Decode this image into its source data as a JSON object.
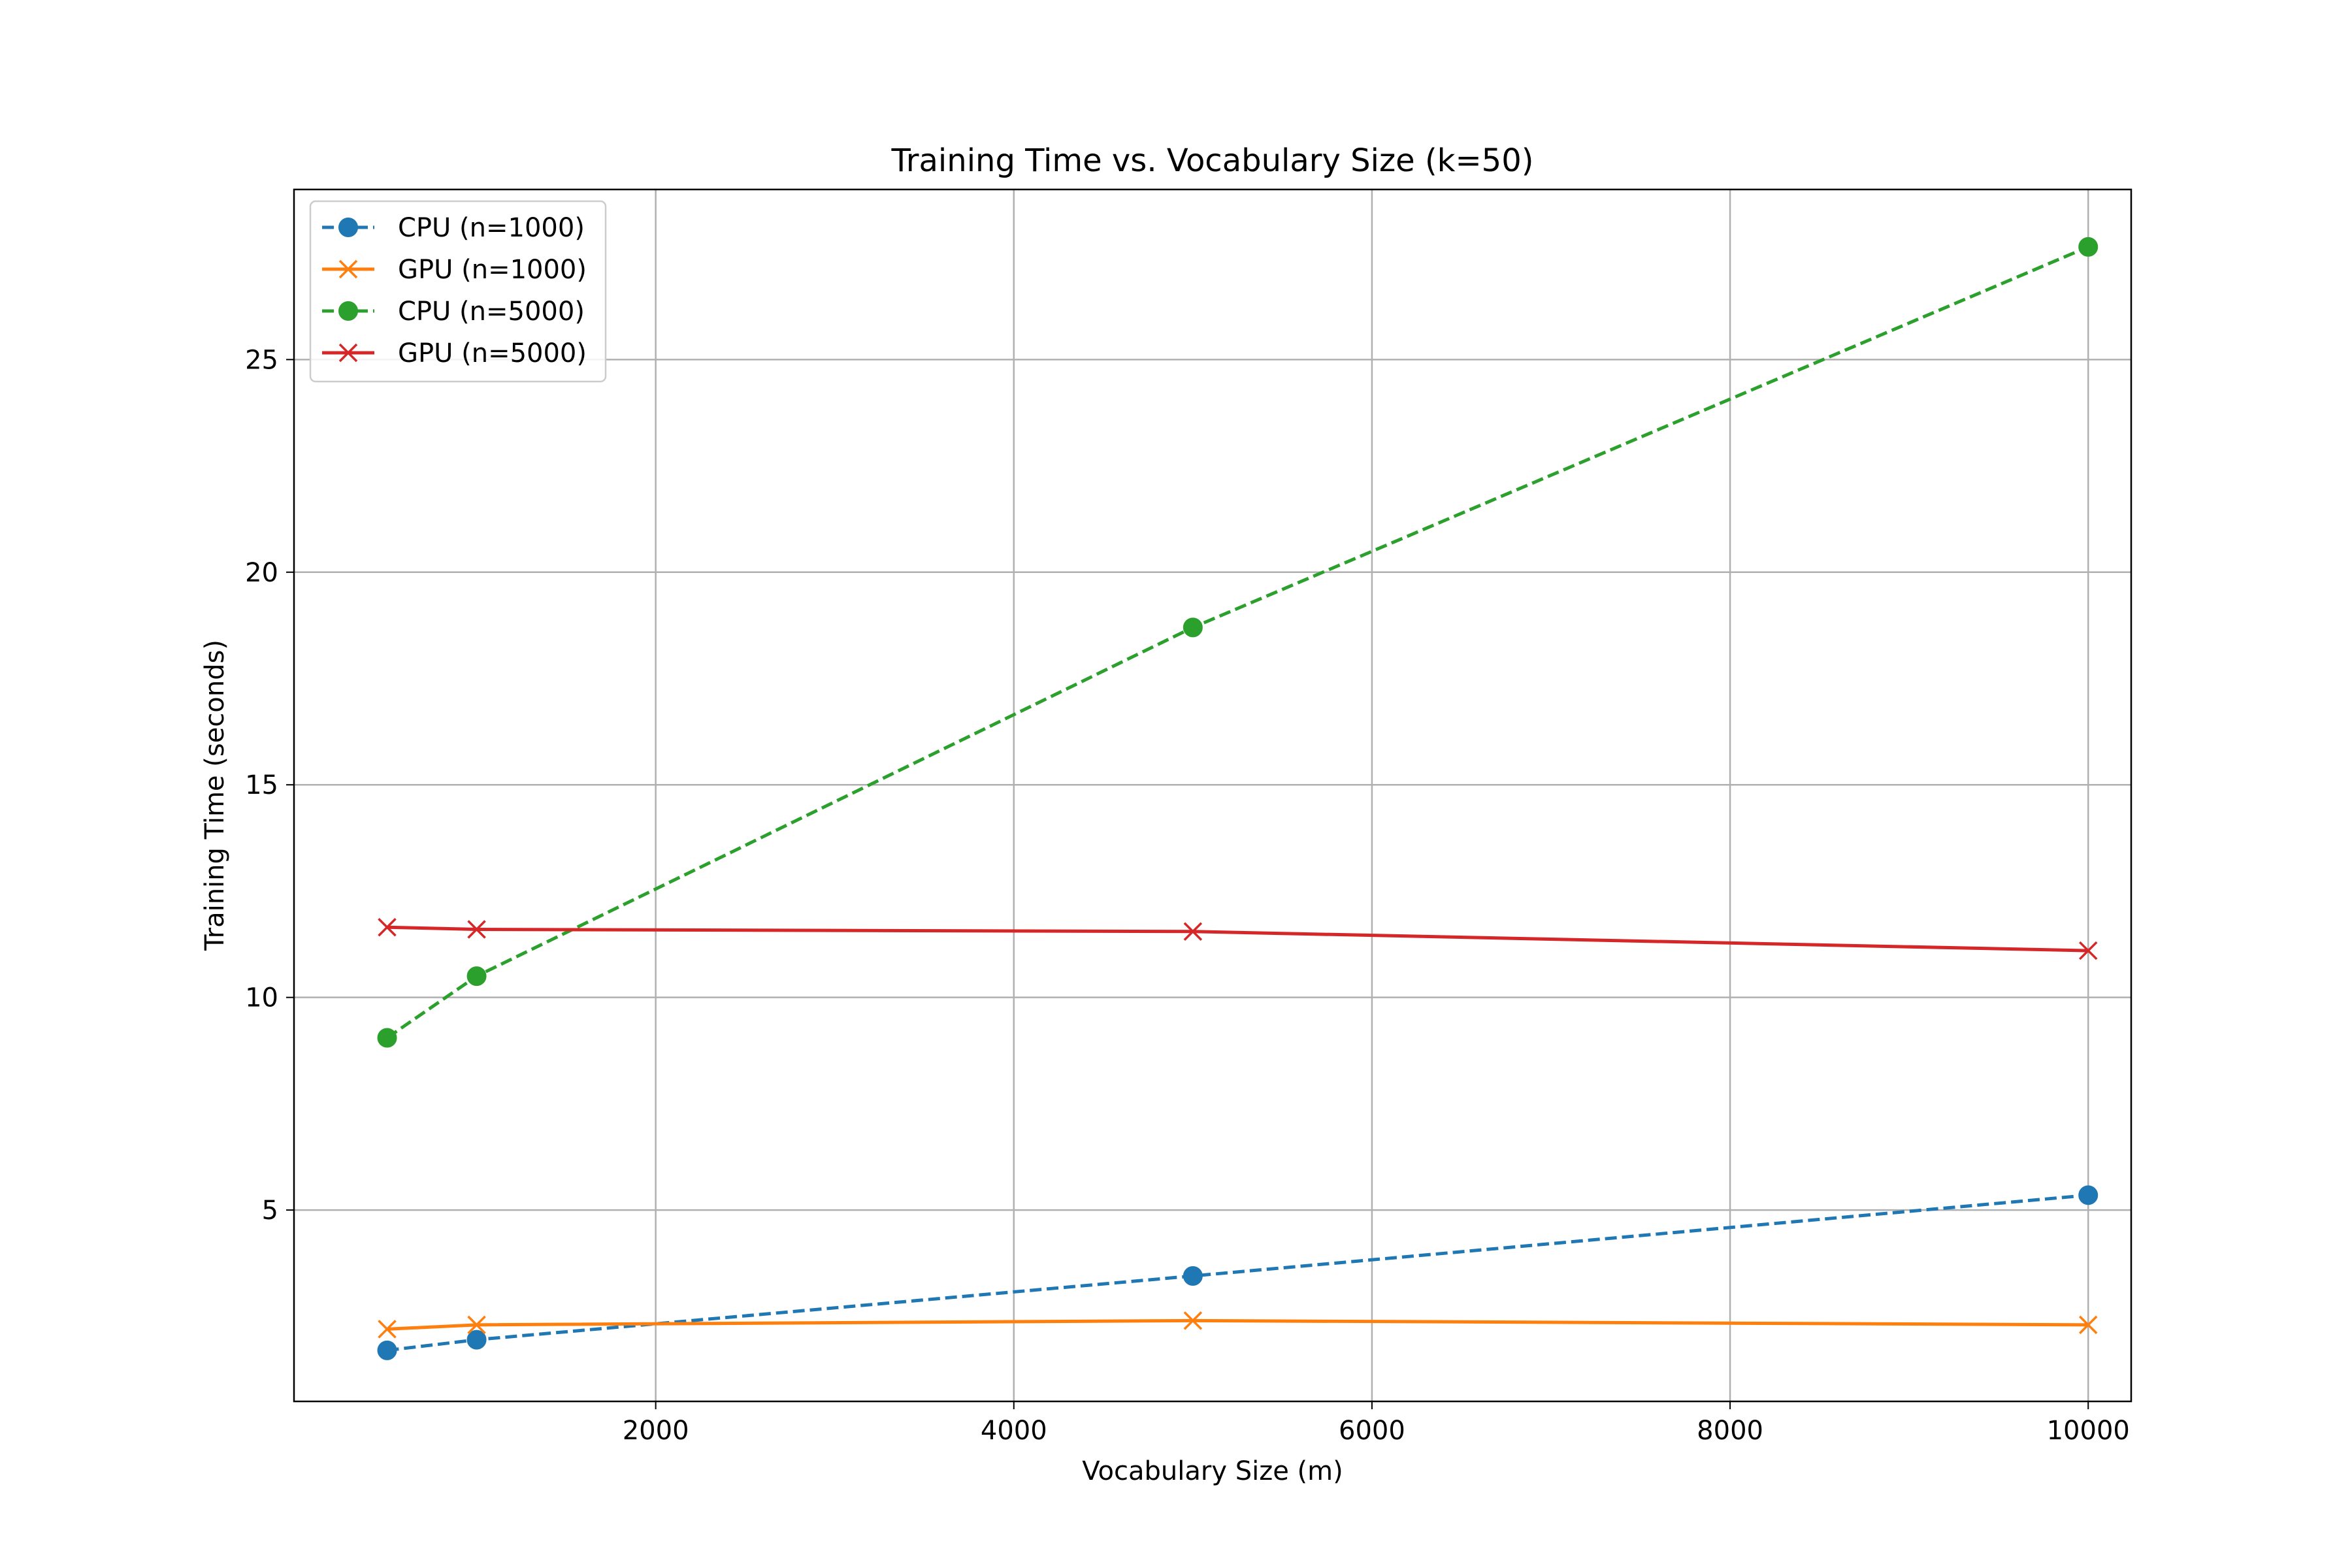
{
  "chart_data": {
    "type": "line",
    "title": "Training Time vs. Vocabulary Size (k=50)",
    "xlabel": "Vocabulary Size (m)",
    "ylabel": "Training Time (seconds)",
    "xlim": [
      -20,
      10240
    ],
    "ylim": [
      0.5,
      29
    ],
    "xticks": [
      2000,
      4000,
      6000,
      8000,
      10000
    ],
    "yticks": [
      5,
      10,
      15,
      20,
      25
    ],
    "grid": true,
    "legend_position": "upper left",
    "x": [
      500,
      1000,
      5000,
      10000
    ],
    "series": [
      {
        "name": "CPU (n=1000)",
        "values": [
          1.7,
          1.95,
          3.45,
          5.35
        ],
        "color": "#1f77b4",
        "marker": "circle",
        "linestyle": "dashed"
      },
      {
        "name": "GPU (n=1000)",
        "values": [
          2.2,
          2.3,
          2.4,
          2.3
        ],
        "color": "#ff7f0e",
        "marker": "x",
        "linestyle": "solid"
      },
      {
        "name": "CPU (n=5000)",
        "values": [
          9.05,
          10.5,
          18.7,
          27.65
        ],
        "color": "#2ca02c",
        "marker": "circle",
        "linestyle": "dashed"
      },
      {
        "name": "GPU (n=5000)",
        "values": [
          11.65,
          11.6,
          11.55,
          11.1
        ],
        "color": "#d62728",
        "marker": "x",
        "linestyle": "solid"
      }
    ]
  }
}
